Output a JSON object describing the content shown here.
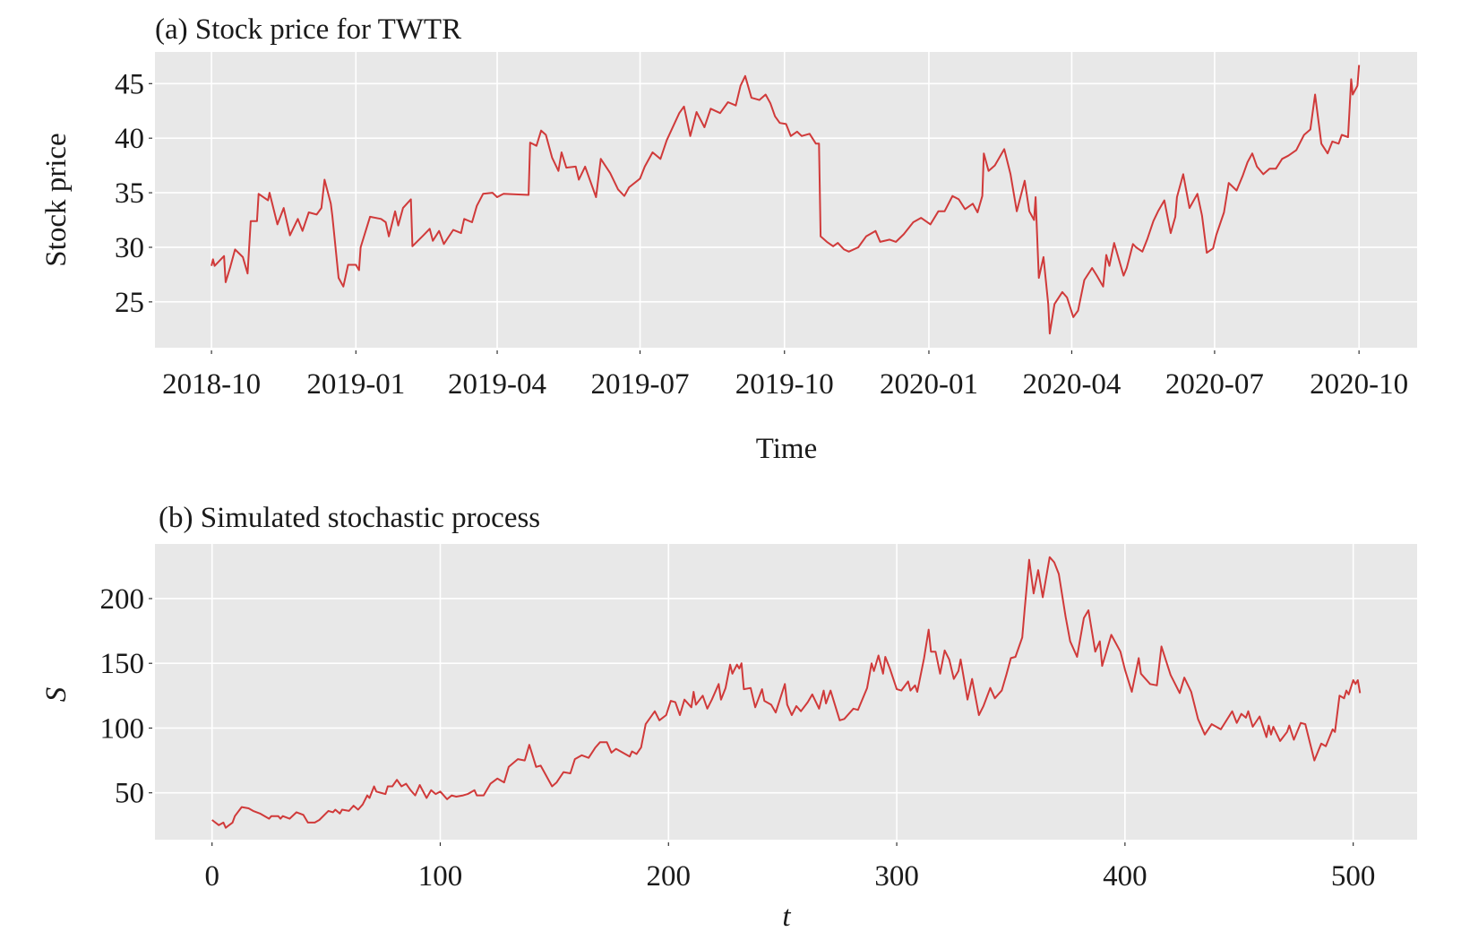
{
  "figure": {
    "line_color": "#d03a3a",
    "panel_color": "#e8e8e8",
    "grid_color": "#ffffff"
  },
  "chart_data": [
    {
      "id": "a",
      "type": "line",
      "title": "(a) Stock price for TWTR",
      "xlabel": "Time",
      "ylabel": "Stock price",
      "x_type": "date",
      "xlim": [
        "2018-08-26",
        "2020-11-07"
      ],
      "ylim": [
        20.8,
        47.9
      ],
      "grid": true,
      "legend": "none",
      "xticks": [
        "2018-10-01",
        "2019-01-01",
        "2019-04-01",
        "2019-07-01",
        "2019-10-01",
        "2020-01-01",
        "2020-04-01",
        "2020-07-01",
        "2020-10-01"
      ],
      "xtick_labels": [
        "2018-10",
        "2019-01",
        "2019-04",
        "2019-07",
        "2019-10",
        "2020-01",
        "2020-04",
        "2020-07",
        "2020-10"
      ],
      "yticks": [
        25,
        30,
        35,
        40,
        45
      ],
      "ytick_labels": [
        "25",
        "30",
        "35",
        "40",
        "45"
      ],
      "series": [
        {
          "name": "TWTR",
          "x": [
            "2018-10-01",
            "2018-10-02",
            "2018-10-03",
            "2018-10-09",
            "2018-10-10",
            "2018-10-13",
            "2018-10-16",
            "2018-10-21",
            "2018-10-24",
            "2018-10-26",
            "2018-10-30",
            "2018-10-31",
            "2018-11-06",
            "2018-11-07",
            "2018-11-12",
            "2018-11-16",
            "2018-11-20",
            "2018-11-25",
            "2018-11-28",
            "2018-12-02",
            "2018-12-07",
            "2018-12-10",
            "2018-12-12",
            "2018-12-16",
            "2018-12-17",
            "2018-12-21",
            "2018-12-24",
            "2018-12-27",
            "2019-01-01",
            "2019-01-03",
            "2019-01-04",
            "2019-01-10",
            "2019-01-17",
            "2019-01-20",
            "2019-01-22",
            "2019-01-26",
            "2019-01-28",
            "2019-01-31",
            "2019-02-05",
            "2019-02-06",
            "2019-02-13",
            "2019-02-17",
            "2019-02-19",
            "2019-02-23",
            "2019-02-26",
            "2019-03-04",
            "2019-03-09",
            "2019-03-11",
            "2019-03-16",
            "2019-03-19",
            "2019-03-23",
            "2019-03-29",
            "2019-04-01",
            "2019-04-05",
            "2019-04-21",
            "2019-04-22",
            "2019-04-26",
            "2019-04-29",
            "2019-05-02",
            "2019-05-06",
            "2019-05-10",
            "2019-05-12",
            "2019-05-15",
            "2019-05-21",
            "2019-05-23",
            "2019-05-27",
            "2019-06-03",
            "2019-06-06",
            "2019-06-12",
            "2019-06-17",
            "2019-06-21",
            "2019-06-24",
            "2019-07-01",
            "2019-07-04",
            "2019-07-09",
            "2019-07-14",
            "2019-07-18",
            "2019-07-26",
            "2019-07-29",
            "2019-08-02",
            "2019-08-06",
            "2019-08-11",
            "2019-08-15",
            "2019-08-21",
            "2019-08-26",
            "2019-08-31",
            "2019-09-03",
            "2019-09-06",
            "2019-09-10",
            "2019-09-15",
            "2019-09-19",
            "2019-09-22",
            "2019-09-25",
            "2019-09-28",
            "2019-10-02",
            "2019-10-05",
            "2019-10-09",
            "2019-10-12",
            "2019-10-17",
            "2019-10-21",
            "2019-10-23",
            "2019-10-24",
            "2019-10-28",
            "2019-11-01",
            "2019-11-04",
            "2019-11-08",
            "2019-11-11",
            "2019-11-17",
            "2019-11-22",
            "2019-11-28",
            "2019-12-01",
            "2019-12-07",
            "2019-12-11",
            "2019-12-16",
            "2019-12-22",
            "2019-12-27",
            "2020-01-01",
            "2020-01-02",
            "2020-01-07",
            "2020-01-11",
            "2020-01-16",
            "2020-01-20",
            "2020-01-24",
            "2020-01-29",
            "2020-02-01",
            "2020-02-04",
            "2020-02-05",
            "2020-02-08",
            "2020-02-12",
            "2020-02-18",
            "2020-02-22",
            "2020-02-26",
            "2020-03-02",
            "2020-03-05",
            "2020-03-08",
            "2020-03-09",
            "2020-03-11",
            "2020-03-14",
            "2020-03-17",
            "2020-03-18",
            "2020-03-21",
            "2020-03-26",
            "2020-03-29",
            "2020-04-02",
            "2020-04-05",
            "2020-04-09",
            "2020-04-14",
            "2020-04-17",
            "2020-04-21",
            "2020-04-23",
            "2020-04-25",
            "2020-04-28",
            "2020-05-04",
            "2020-05-06",
            "2020-05-10",
            "2020-05-12",
            "2020-05-16",
            "2020-05-19",
            "2020-05-23",
            "2020-05-26",
            "2020-05-30",
            "2020-06-03",
            "2020-06-06",
            "2020-06-07",
            "2020-06-11",
            "2020-06-15",
            "2020-06-20",
            "2020-06-23",
            "2020-06-26",
            "2020-06-30",
            "2020-07-02",
            "2020-07-07",
            "2020-07-10",
            "2020-07-15",
            "2020-07-19",
            "2020-07-22",
            "2020-07-25",
            "2020-07-28",
            "2020-08-01",
            "2020-08-05",
            "2020-08-09",
            "2020-08-13",
            "2020-08-17",
            "2020-08-22",
            "2020-08-27",
            "2020-08-31",
            "2020-09-03",
            "2020-09-07",
            "2020-09-11",
            "2020-09-14",
            "2020-09-18",
            "2020-09-20",
            "2020-09-24",
            "2020-09-26",
            "2020-09-27",
            "2020-09-30",
            "2020-10-01"
          ],
          "y": [
            28.3,
            28.9,
            28.3,
            29.2,
            26.8,
            28.2,
            29.8,
            29.1,
            27.6,
            32.4,
            32.4,
            34.9,
            34.3,
            35.0,
            32.1,
            33.6,
            31.1,
            32.6,
            31.5,
            33.2,
            33.0,
            33.6,
            36.2,
            34.0,
            32.9,
            27.2,
            26.4,
            28.4,
            28.4,
            27.9,
            30.0,
            32.8,
            32.6,
            32.3,
            31.0,
            33.3,
            32.0,
            33.6,
            34.4,
            30.1,
            31.1,
            31.7,
            30.6,
            31.5,
            30.3,
            31.6,
            31.3,
            32.6,
            32.3,
            33.8,
            34.9,
            35.0,
            34.6,
            34.9,
            34.8,
            39.6,
            39.3,
            40.7,
            40.3,
            38.2,
            37.0,
            38.7,
            37.3,
            37.4,
            36.2,
            37.4,
            34.6,
            38.1,
            36.8,
            35.3,
            34.7,
            35.5,
            36.3,
            37.4,
            38.7,
            38.1,
            39.8,
            42.3,
            42.9,
            40.2,
            42.4,
            41.0,
            42.7,
            42.3,
            43.3,
            43.0,
            44.8,
            45.7,
            43.7,
            43.5,
            44.0,
            43.2,
            42.0,
            41.4,
            41.3,
            40.2,
            40.6,
            40.2,
            40.4,
            39.5,
            39.5,
            31.0,
            30.5,
            30.1,
            30.4,
            29.8,
            29.6,
            30.0,
            31.0,
            31.5,
            30.5,
            30.7,
            30.5,
            31.2,
            32.3,
            32.7,
            32.2,
            32.1,
            33.3,
            33.3,
            34.7,
            34.4,
            33.5,
            34.0,
            33.2,
            34.7,
            38.6,
            37.0,
            37.5,
            39.0,
            36.7,
            33.3,
            36.1,
            33.3,
            32.5,
            34.6,
            27.2,
            29.1,
            24.8,
            22.1,
            24.8,
            25.9,
            25.4,
            23.6,
            24.2,
            27.0,
            28.1,
            27.4,
            26.4,
            29.3,
            28.3,
            30.4,
            27.4,
            28.1,
            30.3,
            30.0,
            29.6,
            30.7,
            32.4,
            33.3,
            34.3,
            31.3,
            32.8,
            34.6,
            36.7,
            33.6,
            34.9,
            32.9,
            29.5,
            29.9,
            31.1,
            33.2,
            35.9,
            35.2,
            36.6,
            37.8,
            38.6,
            37.4,
            36.7,
            37.2,
            37.2,
            38.1,
            38.4,
            38.9,
            40.3,
            40.8,
            44.0,
            39.5,
            38.6,
            39.7,
            39.5,
            40.3,
            40.1,
            45.4,
            44.0,
            44.8,
            46.7
          ]
        }
      ]
    },
    {
      "id": "b",
      "type": "line",
      "title": "(b) Simulated stochastic process",
      "xlabel": "t",
      "ylabel": "S",
      "x_type": "number",
      "xlim": [
        -25,
        528
      ],
      "ylim": [
        13.8,
        242.2
      ],
      "grid": true,
      "legend": "none",
      "xticks": [
        0,
        100,
        200,
        300,
        400,
        500
      ],
      "xtick_labels": [
        "0",
        "100",
        "200",
        "300",
        "400",
        "500"
      ],
      "yticks": [
        50,
        100,
        150,
        200
      ],
      "ytick_labels": [
        "50",
        "100",
        "150",
        "200"
      ],
      "series": [
        {
          "name": "S",
          "x": [
            0,
            3,
            5,
            6,
            9,
            10,
            13,
            16,
            18,
            21,
            25,
            26,
            29,
            30,
            31,
            34,
            37,
            40,
            42,
            45,
            47,
            51,
            53,
            54,
            56,
            57,
            60,
            62,
            64,
            66,
            68,
            69,
            71,
            72,
            76,
            77,
            79,
            81,
            83,
            85,
            87,
            89,
            91,
            94,
            96,
            98,
            100,
            101,
            103,
            105,
            107,
            110,
            112,
            115,
            116,
            119,
            122,
            125,
            128,
            130,
            134,
            137,
            139,
            142,
            144,
            149,
            151,
            154,
            157,
            159,
            162,
            165,
            168,
            170,
            173,
            175,
            177,
            179,
            183,
            184,
            186,
            188,
            190,
            194,
            196,
            199,
            201,
            203,
            205,
            207,
            210,
            211,
            212,
            215,
            217,
            219,
            222,
            223,
            225,
            227,
            228,
            230,
            231,
            232,
            233,
            236,
            238,
            241,
            242,
            245,
            247,
            251,
            252,
            254,
            256,
            258,
            261,
            263,
            266,
            268,
            269,
            271,
            275,
            277,
            281,
            283,
            287,
            289,
            290,
            292,
            294,
            295,
            297,
            300,
            302,
            305,
            306,
            308,
            309,
            312,
            314,
            315,
            317,
            319,
            321,
            323,
            325,
            327,
            328,
            331,
            333,
            336,
            338,
            341,
            343,
            346,
            348,
            350,
            352,
            355,
            356,
            358,
            360,
            362,
            364,
            367,
            369,
            371,
            374,
            376,
            379,
            382,
            384,
            387,
            389,
            390,
            394,
            398,
            400,
            403,
            406,
            407,
            411,
            414,
            416,
            420,
            424,
            426,
            429,
            432,
            435,
            438,
            442,
            447,
            449,
            451,
            453,
            454,
            456,
            459,
            462,
            463,
            464,
            465,
            468,
            471,
            472,
            474,
            477,
            479,
            481,
            483,
            486,
            488,
            491,
            492,
            494,
            496,
            497,
            498,
            500,
            501,
            502,
            503
          ],
          "y": [
            29,
            25,
            27,
            23,
            27,
            32,
            39,
            38,
            36,
            34,
            30,
            32,
            32,
            30,
            32,
            30,
            35,
            33,
            27,
            27,
            29,
            36,
            35,
            37,
            34,
            37,
            36,
            40,
            37,
            41,
            48,
            46,
            55,
            51,
            49,
            55,
            55,
            60,
            55,
            57,
            52,
            48,
            56,
            46,
            52,
            49,
            51,
            49,
            45,
            48,
            47,
            48,
            49,
            52,
            48,
            48,
            57,
            61,
            58,
            70,
            76,
            75,
            87,
            70,
            71,
            55,
            58,
            66,
            65,
            76,
            79,
            77,
            85,
            89,
            89,
            81,
            84,
            82,
            78,
            82,
            80,
            85,
            103,
            113,
            106,
            110,
            121,
            120,
            110,
            122,
            116,
            128,
            118,
            125,
            115,
            122,
            134,
            122,
            131,
            149,
            142,
            149,
            146,
            150,
            130,
            131,
            116,
            130,
            121,
            118,
            112,
            134,
            118,
            110,
            117,
            113,
            120,
            126,
            115,
            129,
            119,
            129,
            106,
            107,
            115,
            114,
            131,
            150,
            144,
            156,
            142,
            155,
            146,
            130,
            129,
            136,
            129,
            133,
            128,
            154,
            176,
            159,
            159,
            142,
            160,
            153,
            138,
            144,
            153,
            122,
            138,
            110,
            117,
            131,
            123,
            129,
            141,
            154,
            155,
            170,
            191,
            230,
            204,
            222,
            201,
            232,
            228,
            219,
            186,
            167,
            155,
            185,
            191,
            159,
            167,
            148,
            172,
            159,
            145,
            128,
            154,
            142,
            134,
            133,
            163,
            141,
            127,
            139,
            128,
            107,
            95,
            103,
            99,
            113,
            104,
            111,
            108,
            113,
            101,
            109,
            93,
            102,
            95,
            101,
            90,
            97,
            102,
            91,
            104,
            103,
            89,
            75,
            88,
            86,
            99,
            97,
            125,
            123,
            129,
            126,
            137,
            134,
            137,
            127
          ]
        }
      ]
    }
  ]
}
